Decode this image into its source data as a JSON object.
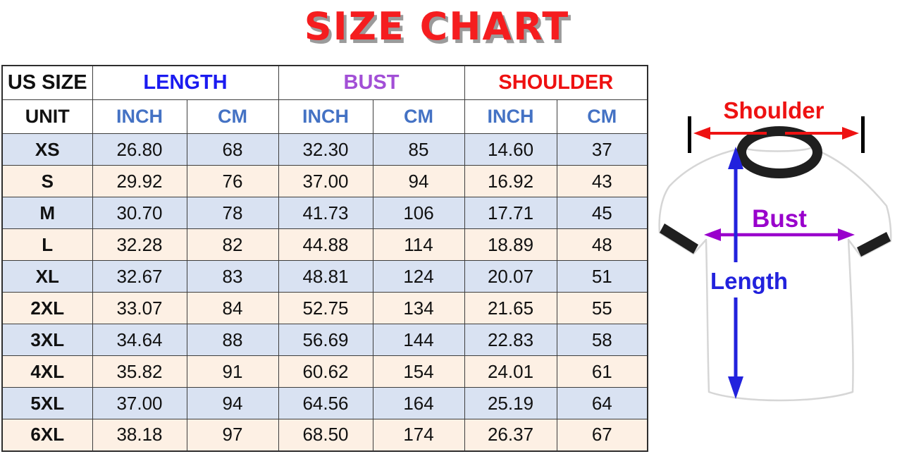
{
  "title": "SIZE CHART",
  "title_color": "#f51d1f",
  "table": {
    "corner_label": "US SIZE",
    "groups": [
      {
        "label": "LENGTH",
        "color": "#1b1bf0"
      },
      {
        "label": "BUST",
        "color": "#a24fd6"
      },
      {
        "label": "SHOULDER",
        "color": "#ee1111"
      }
    ],
    "unit_label": "UNIT",
    "unit_headers": [
      "INCH",
      "CM",
      "INCH",
      "CM",
      "INCH",
      "CM"
    ],
    "unit_header_color": "#4472c4",
    "row_colors": {
      "odd": "#d9e2f2",
      "even": "#fdf0e4"
    },
    "rows": [
      {
        "size": "XS",
        "values": [
          "26.80",
          "68",
          "32.30",
          "85",
          "14.60",
          "37"
        ]
      },
      {
        "size": "S",
        "values": [
          "29.92",
          "76",
          "37.00",
          "94",
          "16.92",
          "43"
        ]
      },
      {
        "size": "M",
        "values": [
          "30.70",
          "78",
          "41.73",
          "106",
          "17.71",
          "45"
        ]
      },
      {
        "size": "L",
        "values": [
          "32.28",
          "82",
          "44.88",
          "114",
          "18.89",
          "48"
        ]
      },
      {
        "size": "XL",
        "values": [
          "32.67",
          "83",
          "48.81",
          "124",
          "20.07",
          "51"
        ]
      },
      {
        "size": "2XL",
        "values": [
          "33.07",
          "84",
          "52.75",
          "134",
          "21.65",
          "55"
        ]
      },
      {
        "size": "3XL",
        "values": [
          "34.64",
          "88",
          "56.69",
          "144",
          "22.83",
          "58"
        ]
      },
      {
        "size": "4XL",
        "values": [
          "35.82",
          "91",
          "60.62",
          "154",
          "24.01",
          "61"
        ]
      },
      {
        "size": "5XL",
        "values": [
          "37.00",
          "94",
          "64.56",
          "164",
          "25.19",
          "64"
        ]
      },
      {
        "size": "6XL",
        "values": [
          "38.18",
          "97",
          "68.50",
          "174",
          "26.37",
          "67"
        ]
      }
    ]
  },
  "diagram": {
    "shoulder_label": "Shoulder",
    "bust_label": "Bust",
    "length_label": "Length",
    "colors": {
      "shoulder": "#ee1212",
      "bust": "#9900cc",
      "length": "#2222dd",
      "shirt_trim": "#1f1f1f"
    }
  },
  "chart_data": {
    "type": "table",
    "title": "SIZE CHART",
    "columns": [
      "US SIZE",
      "LENGTH INCH",
      "LENGTH CM",
      "BUST INCH",
      "BUST CM",
      "SHOULDER INCH",
      "SHOULDER CM"
    ],
    "rows": [
      [
        "XS",
        26.8,
        68,
        32.3,
        85,
        14.6,
        37
      ],
      [
        "S",
        29.92,
        76,
        37.0,
        94,
        16.92,
        43
      ],
      [
        "M",
        30.7,
        78,
        41.73,
        106,
        17.71,
        45
      ],
      [
        "L",
        32.28,
        82,
        44.88,
        114,
        18.89,
        48
      ],
      [
        "XL",
        32.67,
        83,
        48.81,
        124,
        20.07,
        51
      ],
      [
        "2XL",
        33.07,
        84,
        52.75,
        134,
        21.65,
        55
      ],
      [
        "3XL",
        34.64,
        88,
        56.69,
        144,
        22.83,
        58
      ],
      [
        "4XL",
        35.82,
        91,
        60.62,
        154,
        24.01,
        61
      ],
      [
        "5XL",
        37.0,
        94,
        64.56,
        164,
        25.19,
        64
      ],
      [
        "6XL",
        38.18,
        97,
        68.5,
        174,
        26.37,
        67
      ]
    ]
  }
}
